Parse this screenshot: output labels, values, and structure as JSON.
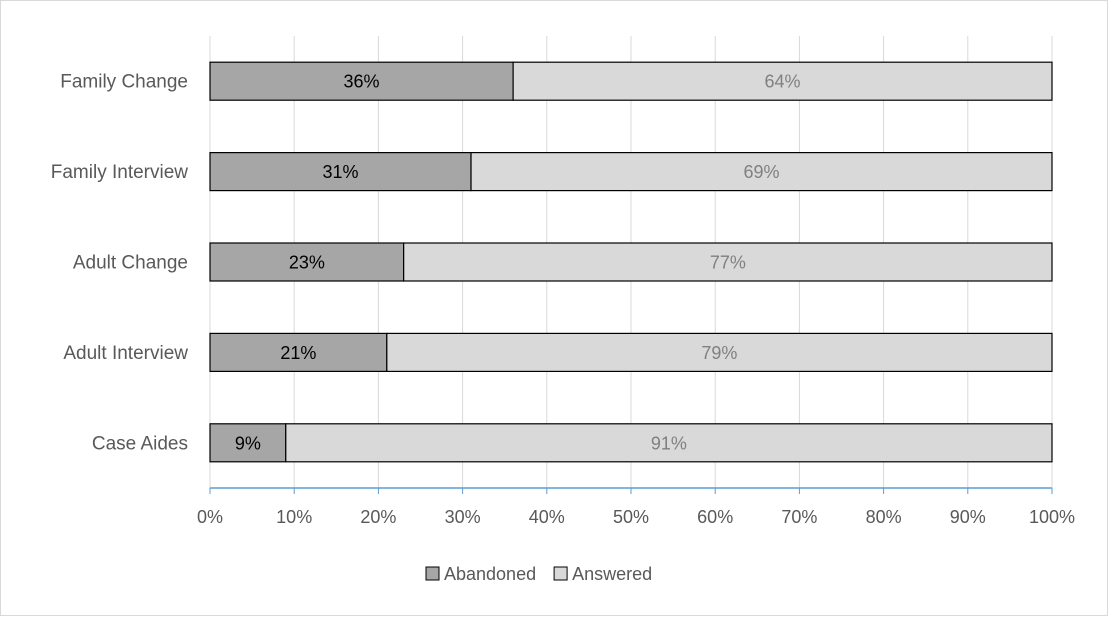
{
  "chart_data": {
    "type": "bar",
    "orientation": "horizontal",
    "stacked": true,
    "percent_stacked": true,
    "categories": [
      "Family Change",
      "Family Interview",
      "Adult Change",
      "Adult Interview",
      "Case Aides"
    ],
    "series": [
      {
        "name": "Abandoned",
        "values": [
          36,
          31,
          23,
          21,
          9
        ],
        "labels": [
          "36%",
          "31%",
          "23%",
          "21%",
          "9%"
        ],
        "color": "#a6a6a6",
        "label_color": "#000000"
      },
      {
        "name": "Answered",
        "values": [
          64,
          69,
          77,
          79,
          91
        ],
        "labels": [
          "64%",
          "69%",
          "77%",
          "79%",
          "91%"
        ],
        "color": "#d9d9d9",
        "label_color": "#808080"
      }
    ],
    "x_ticks": [
      "0%",
      "10%",
      "20%",
      "30%",
      "40%",
      "50%",
      "60%",
      "70%",
      "80%",
      "90%",
      "100%"
    ],
    "xlim": [
      0,
      100
    ],
    "grid": true,
    "legend": "bottom",
    "colors": {
      "grid": "#d9d9d9",
      "axis": "#5b9bd5",
      "text": "#595959",
      "frame": "#d9d9d9"
    }
  }
}
